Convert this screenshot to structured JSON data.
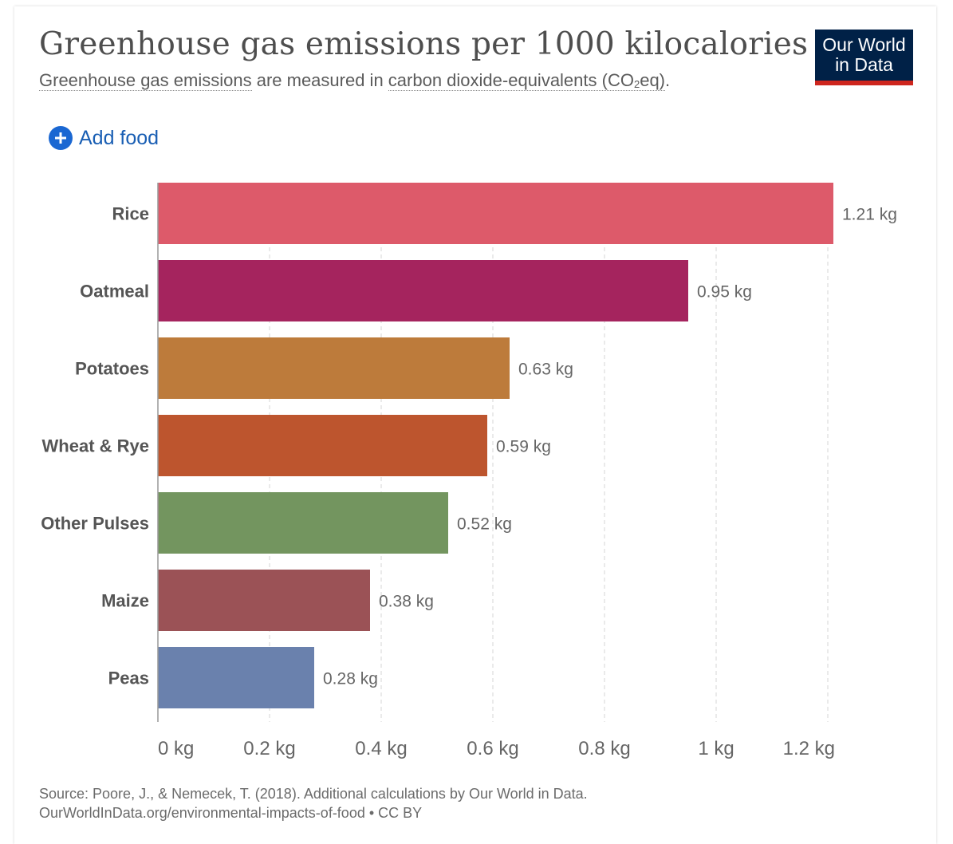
{
  "header": {
    "title": "Greenhouse gas emissions per 1000 kilocalories",
    "subtitle_term1": "Greenhouse gas emissions",
    "subtitle_mid": " are measured in ",
    "subtitle_term2_main": "carbon dioxide-equivalents (CO",
    "subtitle_term2_sub": "2",
    "subtitle_term2_end": "eq)",
    "subtitle_end": "."
  },
  "logo": {
    "line1": "Our World",
    "line2": "in Data"
  },
  "controls": {
    "add_food_label": "Add food",
    "add_icon": "plus-circle-icon"
  },
  "chart_data": {
    "type": "bar",
    "orientation": "horizontal",
    "title": "Greenhouse gas emissions per 1000 kilocalories",
    "xlabel": "",
    "ylabel": "",
    "unit": "kg",
    "categories": [
      "Rice",
      "Oatmeal",
      "Potatoes",
      "Wheat & Rye",
      "Other Pulses",
      "Maize",
      "Peas"
    ],
    "values": [
      1.21,
      0.95,
      0.63,
      0.59,
      0.52,
      0.38,
      0.28
    ],
    "value_labels": [
      "1.21 kg",
      "0.95 kg",
      "0.63 kg",
      "0.59 kg",
      "0.52 kg",
      "0.38 kg",
      "0.28 kg"
    ],
    "colors": [
      "#dd5a6a",
      "#a5245e",
      "#bd7b3b",
      "#bd552e",
      "#73955f",
      "#9b5256",
      "#6a81ad"
    ],
    "xlim": [
      0,
      1.21
    ],
    "xticks": [
      0,
      0.2,
      0.4,
      0.6,
      0.8,
      1,
      1.2
    ],
    "xtick_labels": [
      "0 kg",
      "0.2 kg",
      "0.4 kg",
      "0.6 kg",
      "0.8 kg",
      "1 kg",
      "1.2 kg"
    ],
    "grid": true,
    "legend": "none"
  },
  "footer": {
    "source": "Source: Poore, J., & Nemecek, T. (2018). Additional calculations by Our World in Data.",
    "license": "OurWorldInData.org/environmental-impacts-of-food • CC BY"
  },
  "colors": {
    "brand": "#002147",
    "accent": "#ce261e",
    "link": "#1a5fb4"
  }
}
